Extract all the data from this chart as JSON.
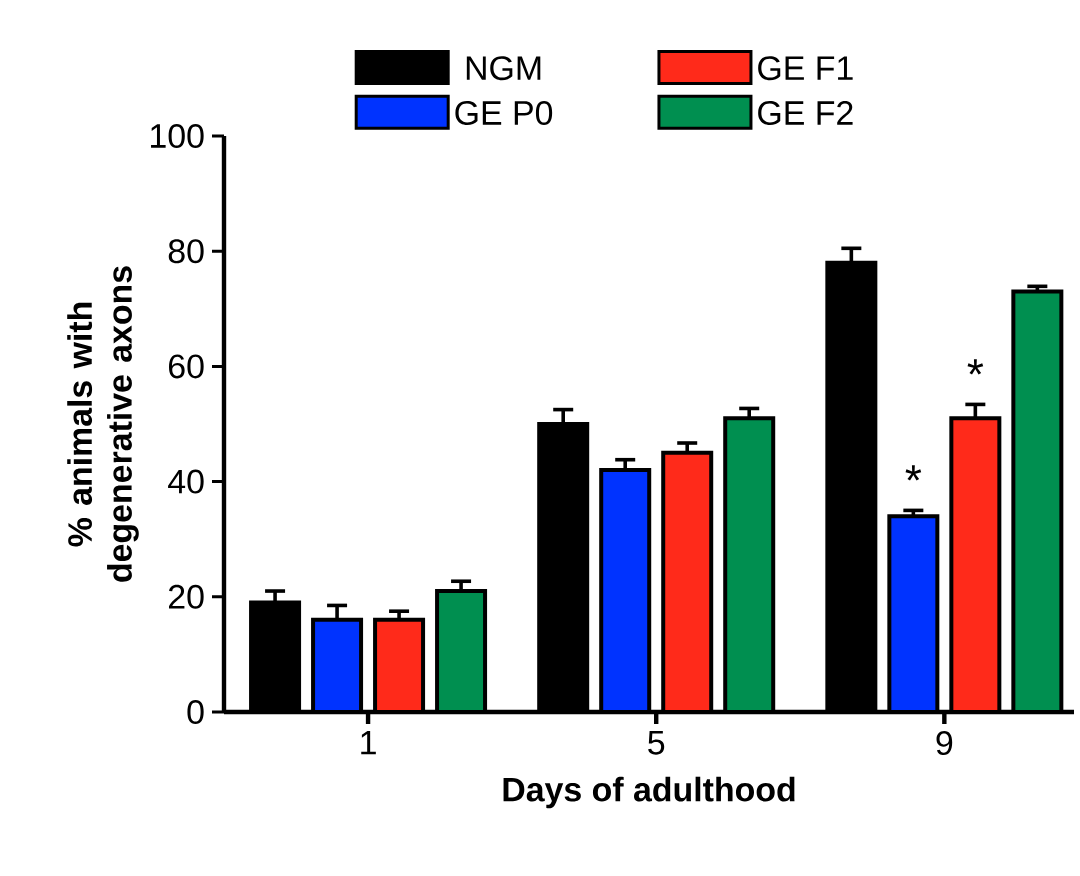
{
  "chart_data": {
    "type": "bar",
    "xlabel": "Days of adulthood",
    "ylabel": "% animals with degenerative axons",
    "categories": [
      "1",
      "5",
      "9"
    ],
    "series": [
      {
        "name": "NGM",
        "color": "#000000",
        "values": [
          19,
          50,
          78
        ],
        "errors": [
          2,
          2.5,
          2.5
        ]
      },
      {
        "name": "GE P0",
        "color": "#0033ff",
        "values": [
          16,
          42,
          34
        ],
        "errors": [
          2.5,
          1.8,
          1
        ]
      },
      {
        "name": "GE F1",
        "color": "#ff2a1a",
        "values": [
          16,
          45,
          51
        ],
        "errors": [
          1.5,
          1.7,
          2.4
        ]
      },
      {
        "name": "GE F2",
        "color": "#008f50",
        "values": [
          21,
          51,
          73
        ],
        "errors": [
          1.7,
          1.7,
          0.9
        ]
      }
    ],
    "ylim": [
      0,
      100
    ],
    "yticks": [
      0,
      20,
      40,
      60,
      80,
      100
    ],
    "grid": false,
    "legend": "top",
    "annotations": [
      {
        "text": "*",
        "x": "9",
        "y": 34
      },
      {
        "text": "*",
        "x": "9",
        "y": 51
      }
    ]
  }
}
